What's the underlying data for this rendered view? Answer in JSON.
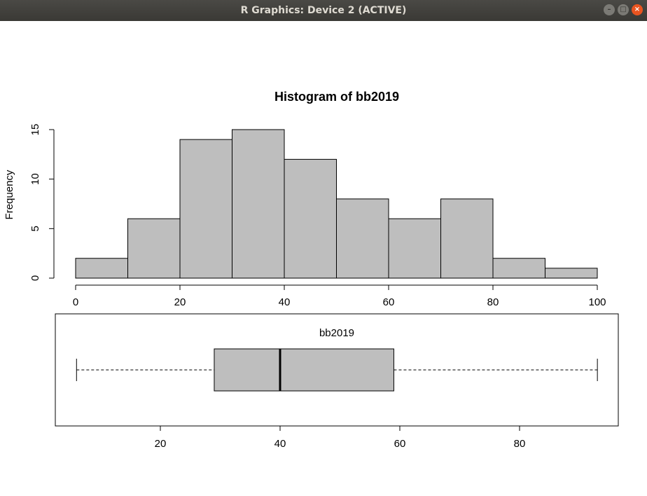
{
  "window": {
    "title": "R Graphics: Device 2 (ACTIVE)",
    "minimize_icon": "–",
    "maximize_icon": "□",
    "close_icon": "×"
  },
  "colors": {
    "bar_fill": "#bebebe",
    "stroke": "#000000"
  },
  "chart_data": [
    {
      "type": "bar",
      "subtype": "histogram",
      "title": "Histogram of bb2019",
      "xlabel": "",
      "ylabel": "Frequency",
      "bins": [
        [
          0,
          10
        ],
        [
          10,
          20
        ],
        [
          20,
          30
        ],
        [
          30,
          40
        ],
        [
          40,
          50
        ],
        [
          50,
          60
        ],
        [
          60,
          70
        ],
        [
          70,
          80
        ],
        [
          80,
          90
        ],
        [
          90,
          100
        ]
      ],
      "values": [
        2,
        6,
        14,
        15,
        12,
        8,
        6,
        8,
        2,
        1
      ],
      "xlim": [
        0,
        100
      ],
      "ylim": [
        0,
        15
      ],
      "xticks": [
        0,
        20,
        40,
        60,
        80,
        100
      ],
      "yticks": [
        0,
        5,
        10,
        15
      ],
      "grid": false
    },
    {
      "type": "boxplot",
      "orientation": "horizontal",
      "title": "bb2019",
      "min": 6,
      "q1": 29,
      "median": 40,
      "q3": 59,
      "max": 93,
      "xlim": [
        2,
        97
      ],
      "xticks": [
        20,
        40,
        60,
        80
      ]
    }
  ]
}
